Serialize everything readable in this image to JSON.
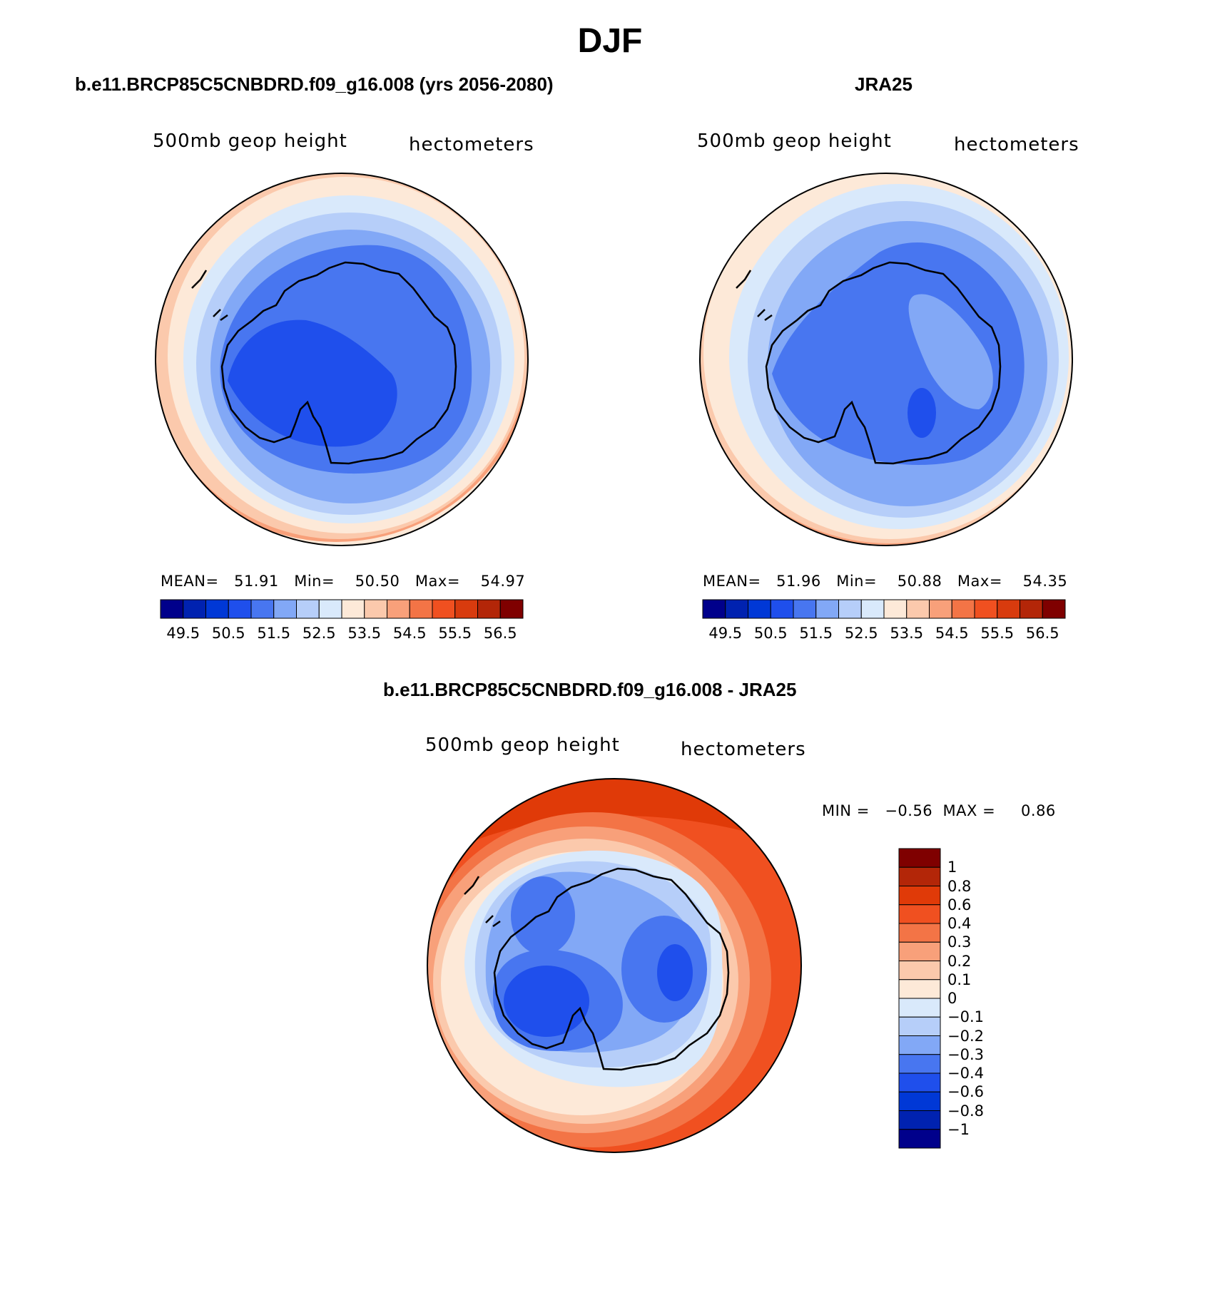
{
  "title": "DJF",
  "panels": [
    {
      "title": "b.e11.BRCP85C5CNBDRD.f09_g16.008 (yrs 2056-2080)",
      "field_label": "500mb geop height",
      "units_label": "hectometers",
      "stats_text": "MEAN=   51.91   Min=    50.50   Max=    54.97"
    },
    {
      "title": "JRA25",
      "field_label": "500mb geop height",
      "units_label": "hectometers",
      "stats_text": "MEAN=   51.96   Min=    50.88   Max=    54.35"
    },
    {
      "title": "b.e11.BRCP85C5CNBDRD.f09_g16.008 - JRA25",
      "field_label": "500mb geop height",
      "units_label": "hectometers",
      "stats_text": "MIN =   −0.56  MAX =     0.86"
    }
  ],
  "colorbar_main": {
    "colors": [
      "#00008b",
      "#0022b0",
      "#0038d6",
      "#1f4fec",
      "#4876f0",
      "#82a8f6",
      "#b6cef9",
      "#d9e9fb",
      "#fde9d8",
      "#fbc9ac",
      "#f8a07a",
      "#f37446",
      "#f05020",
      "#d83b0e",
      "#b32608",
      "#7f0000"
    ],
    "ticks": [
      "49.5",
      "50.5",
      "51.5",
      "52.5",
      "53.5",
      "54.5",
      "55.5",
      "56.5"
    ]
  },
  "colorbar_diff": {
    "colors": [
      "#7f0000",
      "#b32608",
      "#e03a08",
      "#f05020",
      "#f37446",
      "#f8a07a",
      "#fbc9ac",
      "#fde9d8",
      "#d9e9fb",
      "#b6cef9",
      "#82a8f6",
      "#4876f0",
      "#1f4fec",
      "#0038d6",
      "#0022b0",
      "#00008b"
    ],
    "ticks": [
      "1",
      "0.8",
      "0.6",
      "0.4",
      "0.3",
      "0.2",
      "0.1",
      "0",
      "−0.1",
      "−0.2",
      "−0.3",
      "−0.4",
      "−0.6",
      "−0.8",
      "−1"
    ]
  }
}
